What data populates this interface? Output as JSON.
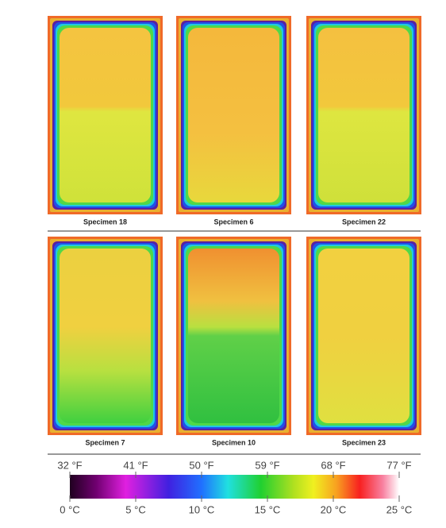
{
  "panels": [
    {
      "label": "Specimen 18"
    },
    {
      "label": "Specimen 6"
    },
    {
      "label": "Specimen 22"
    },
    {
      "label": "Specimen 7"
    },
    {
      "label": "Specimen 10"
    },
    {
      "label": "Specimen 23"
    }
  ],
  "scale": {
    "fahrenheit": [
      "32 °F",
      "41 °F",
      "50 °F",
      "59 °F",
      "68 °F",
      "77 °F"
    ],
    "celsius": [
      "0 °C",
      "5 °C",
      "10 °C",
      "15 °C",
      "20 °C",
      "25 °C"
    ]
  }
}
